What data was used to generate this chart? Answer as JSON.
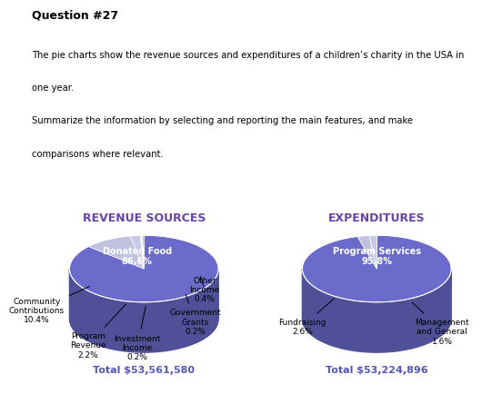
{
  "title_question": "Question #27",
  "description_lines": [
    "The pie charts show the revenue sources and expenditures of a children’s charity in the USA in",
    "one year.",
    "Summarize the information by selecting and reporting the main features, and make",
    "comparisons where relevant."
  ],
  "revenue": {
    "title": "REVENUE SOURCES",
    "total": "Total $53,561,580",
    "slices": [
      {
        "label": "Donated Food",
        "pct": "86.6%",
        "value": 86.6,
        "color": "#6b6bcc",
        "label_in_pie": true,
        "label_color": "white"
      },
      {
        "label": "Community\nContributions",
        "pct": "10.4%",
        "value": 10.4,
        "color": "#c0c0e0",
        "label_in_pie": false,
        "label_color": "black"
      },
      {
        "label": "Program\nRevenue",
        "pct": "2.2%",
        "value": 2.2,
        "color": "#c8c8e8",
        "label_in_pie": false,
        "label_color": "black"
      },
      {
        "label": "Investment\nIncome",
        "pct": "0.2%",
        "value": 0.2,
        "color": "#d8d8f0",
        "label_in_pie": false,
        "label_color": "black"
      },
      {
        "label": "Government\nGrants",
        "pct": "0.2%",
        "value": 0.2,
        "color": "#d0d0ec",
        "label_in_pie": false,
        "label_color": "black"
      },
      {
        "label": "Other\nIncome",
        "pct": "0.4%",
        "value": 0.4,
        "color": "#b8b8e0",
        "label_in_pie": false,
        "label_color": "black"
      }
    ]
  },
  "expenditure": {
    "title": "EXPENDITURES",
    "total": "Total $53,224,896",
    "slices": [
      {
        "label": "Program Services",
        "pct": "95.8%",
        "value": 95.8,
        "color": "#6b6bcc",
        "label_in_pie": true,
        "label_color": "white"
      },
      {
        "label": "Fundraising",
        "pct": "2.6%",
        "value": 2.6,
        "color": "#c0c0e0",
        "label_in_pie": false,
        "label_color": "black"
      },
      {
        "label": "Management\nand General",
        "pct": "1.6%",
        "value": 1.6,
        "color": "#c8c8e8",
        "label_in_pie": false,
        "label_color": "black"
      }
    ]
  },
  "title_color": "#6644aa",
  "total_color": "#5555bb",
  "bg_color": "#ffffff",
  "pie_depth": 0.18,
  "pie_yscale": 0.45
}
